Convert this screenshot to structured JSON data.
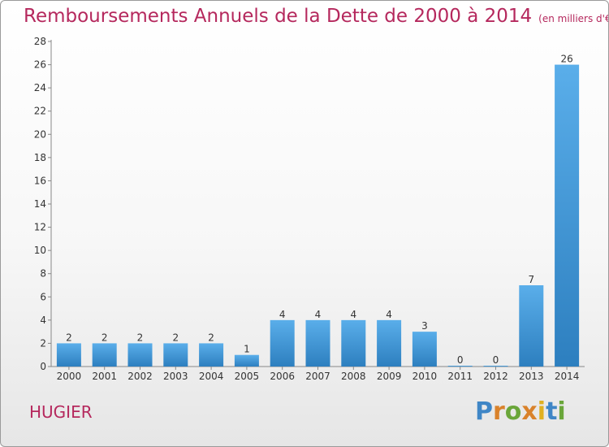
{
  "header": {
    "title": "Remboursements Annuels de la Dette de 2000 à 2014",
    "subtitle": "(en milliers d'€)"
  },
  "footer": {
    "commune": "HUGIER",
    "logo_text": "Proxiti"
  },
  "colors": {
    "title": "#b5285d",
    "bar_light": "#5aaeea",
    "bar_dark": "#2d7fbf",
    "logo_letters": [
      "#3f86c6",
      "#d9822b",
      "#6aa63a",
      "#d9822b",
      "#e0b020",
      "#3f86c6",
      "#6aa63a"
    ]
  },
  "chart_data": {
    "type": "bar",
    "categories": [
      "2000",
      "2001",
      "2002",
      "2003",
      "2004",
      "2005",
      "2006",
      "2007",
      "2008",
      "2009",
      "2010",
      "2011",
      "2012",
      "2013",
      "2014"
    ],
    "values": [
      2,
      2,
      2,
      2,
      2,
      1,
      4,
      4,
      4,
      4,
      3,
      0,
      0,
      7,
      26
    ],
    "data_labels": [
      "2",
      "2",
      "2",
      "2",
      "2",
      "1",
      "4",
      "4",
      "4",
      "4",
      "3",
      "0",
      "0",
      "7",
      "26"
    ],
    "yticks": [
      "0",
      "2",
      "4",
      "6",
      "8",
      "10",
      "12",
      "14",
      "16",
      "18",
      "20",
      "22",
      "24",
      "26",
      "28"
    ],
    "ylim": [
      0,
      28
    ],
    "grid": false,
    "legend": "none"
  }
}
